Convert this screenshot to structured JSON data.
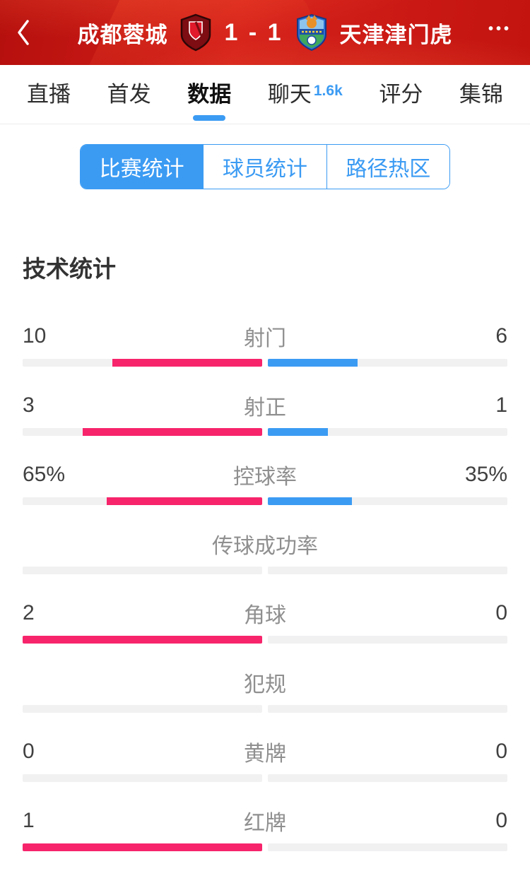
{
  "header": {
    "home_team": "成都蓉城",
    "away_team": "天津津门虎",
    "score": "1 - 1",
    "more_icon": "•••"
  },
  "tabs": [
    {
      "label": "直播",
      "active": false
    },
    {
      "label": "首发",
      "active": false
    },
    {
      "label": "数据",
      "active": true
    },
    {
      "label": "聊天",
      "active": false,
      "badge": "1.6k"
    },
    {
      "label": "评分",
      "active": false
    },
    {
      "label": "集锦",
      "active": false
    }
  ],
  "subtabs": [
    {
      "label": "比赛统计",
      "active": true
    },
    {
      "label": "球员统计",
      "active": false
    },
    {
      "label": "路径热区",
      "active": false
    }
  ],
  "section_title": "技术统计",
  "chart_data": {
    "type": "bar",
    "title": "技术统计",
    "series": [
      {
        "name": "成都蓉城",
        "side": "home",
        "color": "#F7246B"
      },
      {
        "name": "天津津门虎",
        "side": "away",
        "color": "#3B9BF3"
      }
    ],
    "stats": [
      {
        "label": "射门",
        "home": "10",
        "away": "6",
        "home_frac": 0.625,
        "away_frac": 0.375
      },
      {
        "label": "射正",
        "home": "3",
        "away": "1",
        "home_frac": 0.75,
        "away_frac": 0.25
      },
      {
        "label": "控球率",
        "home": "65%",
        "away": "35%",
        "home_frac": 0.65,
        "away_frac": 0.35
      },
      {
        "label": "传球成功率",
        "home": "",
        "away": "",
        "home_frac": 0,
        "away_frac": 0
      },
      {
        "label": "角球",
        "home": "2",
        "away": "0",
        "home_frac": 1,
        "away_frac": 0
      },
      {
        "label": "犯规",
        "home": "",
        "away": "",
        "home_frac": 0,
        "away_frac": 0
      },
      {
        "label": "黄牌",
        "home": "0",
        "away": "0",
        "home_frac": 0,
        "away_frac": 0
      },
      {
        "label": "红牌",
        "home": "1",
        "away": "0",
        "home_frac": 1,
        "away_frac": 0
      }
    ]
  },
  "colors": {
    "home_bar": "#F7246B",
    "away_bar": "#3B9BF3",
    "accent_blue": "#3B9BF3",
    "header_red": "#C41410",
    "track_gray": "#F1F1F2"
  }
}
